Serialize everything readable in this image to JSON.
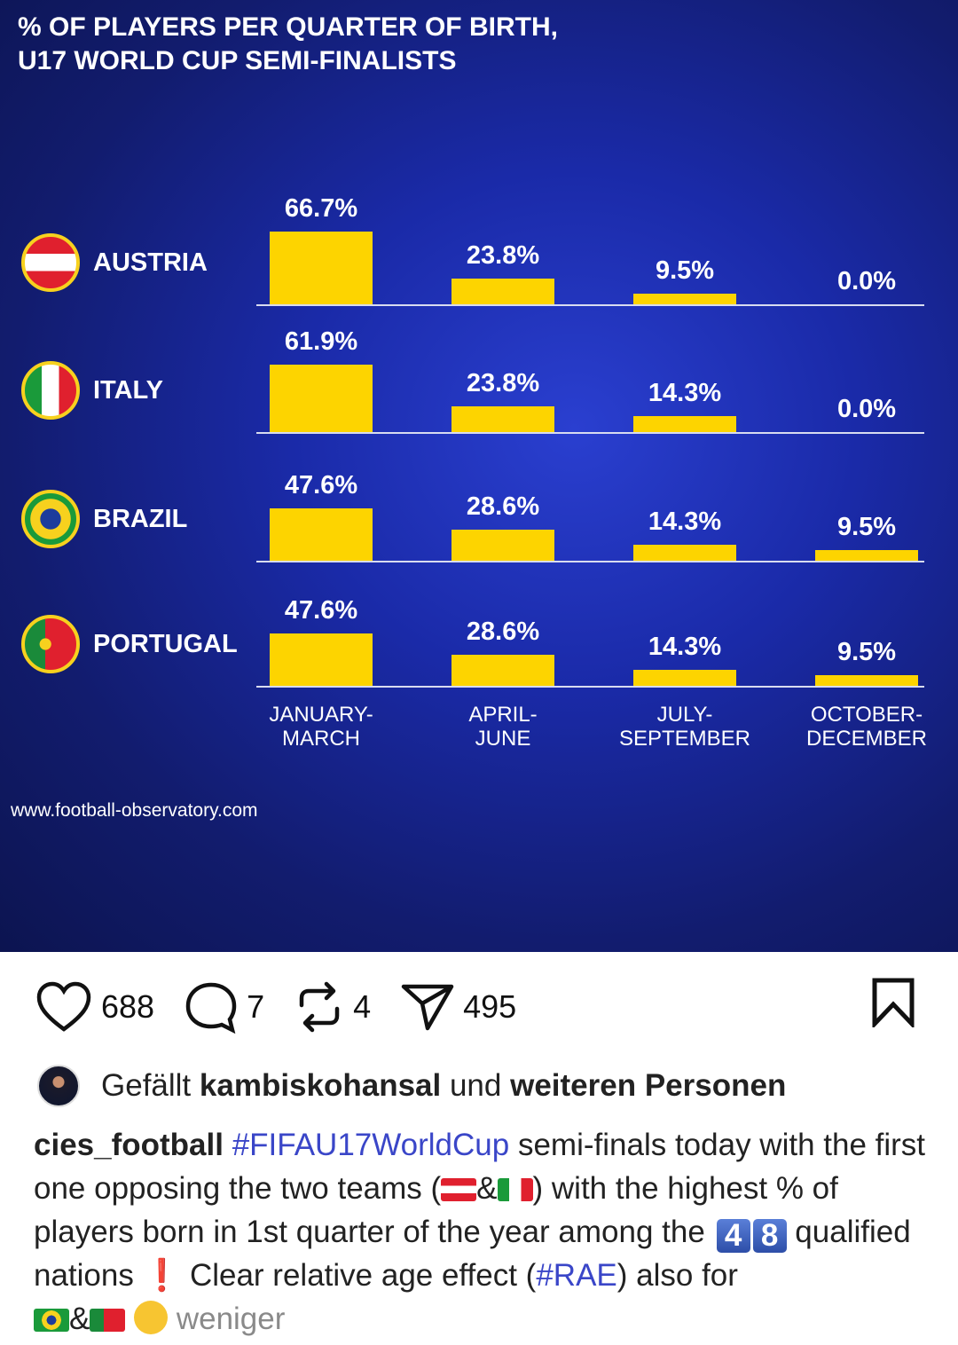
{
  "chart_data": {
    "type": "bar",
    "title": "% OF PLAYERS PER QUARTER OF BIRTH, U17 WORLD CUP SEMI-FINALISTS",
    "title_lines": [
      "% OF PLAYERS PER QUARTER OF BIRTH,",
      "U17 WORLD CUP SEMI-FINALISTS"
    ],
    "categories": [
      "JANUARY-\nMARCH",
      "APRIL-\nJUNE",
      "JULY-\nSEPTEMBER",
      "OCTOBER-\nDECEMBER"
    ],
    "series": [
      {
        "name": "AUSTRIA",
        "values": [
          66.7,
          23.8,
          9.5,
          0.0
        ]
      },
      {
        "name": "ITALY",
        "values": [
          61.9,
          23.8,
          14.3,
          0.0
        ]
      },
      {
        "name": "BRAZIL",
        "values": [
          47.6,
          28.6,
          14.3,
          9.5
        ]
      },
      {
        "name": "PORTUGAL",
        "values": [
          47.6,
          28.6,
          14.3,
          9.5
        ]
      }
    ],
    "unit": "%",
    "bar_color": "#fdd400",
    "source": "www.football-observatory.com"
  },
  "actions": {
    "likes": "688",
    "comments": "7",
    "reposts": "4",
    "shares": "495"
  },
  "liked_by": {
    "prefix": "Gefällt",
    "user": "kambiskohansal",
    "middle": "und",
    "suffix": "weiteren Personen"
  },
  "caption": {
    "user": "cies_football",
    "hashtag1": "#FIFAU17WorldCup",
    "t1": "semi-finals today with the first one opposing the two teams (",
    "amp": "&",
    "t2": ") with the highest % of players born in 1st quarter of the year among the",
    "key1": "4",
    "key2": "8",
    "t3": "qualified nations",
    "bang": "❗",
    "t4": "Clear relative age effect (",
    "hashtag2": "#RAE",
    "t5": ") also for",
    "more": "weniger"
  }
}
